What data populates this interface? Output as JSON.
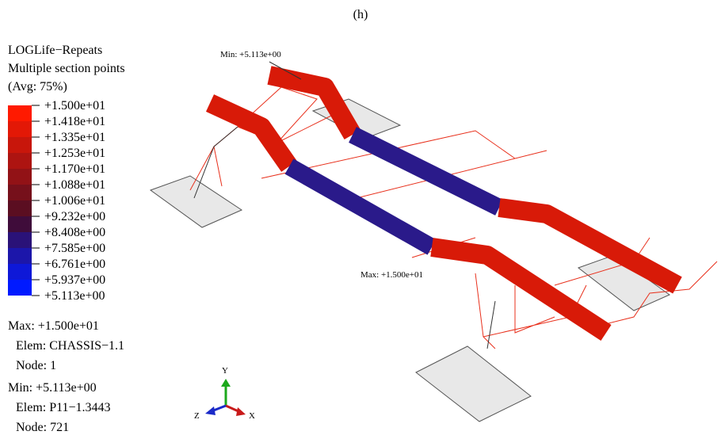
{
  "title": "(h)",
  "legend": {
    "lines": [
      "LOGLife−Repeats",
      "Multiple section points",
      "(Avg: 75%)"
    ],
    "labels": [
      "+1.500e+01",
      "+1.418e+01",
      "+1.335e+01",
      "+1.253e+01",
      "+1.170e+01",
      "+1.088e+01",
      "+1.006e+01",
      "+9.232e+00",
      "+8.408e+00",
      "+7.585e+00",
      "+6.761e+00",
      "+5.937e+00",
      "+5.113e+00"
    ],
    "colors": [
      "#ff1a00",
      "#e31806",
      "#c8160b",
      "#ad1411",
      "#921216",
      "#76101b",
      "#5b0e21",
      "#3f0c3a",
      "#2a1278",
      "#1c16aa",
      "#0e18d8",
      "#001aff"
    ]
  },
  "max_info": {
    "value": "Max: +1.500e+01",
    "elem": "Elem: CHASSIS−1.1",
    "node": "Node: 1"
  },
  "min_info": {
    "value": "Min: +5.113e+00",
    "elem": "Elem: P11−1.3443",
    "node": "Node: 721"
  },
  "annotations": {
    "min": "Min: +5.113e+00",
    "max": "Max: +1.500e+01"
  },
  "triad": {
    "x": "X",
    "y": "Y",
    "z": "Z"
  }
}
